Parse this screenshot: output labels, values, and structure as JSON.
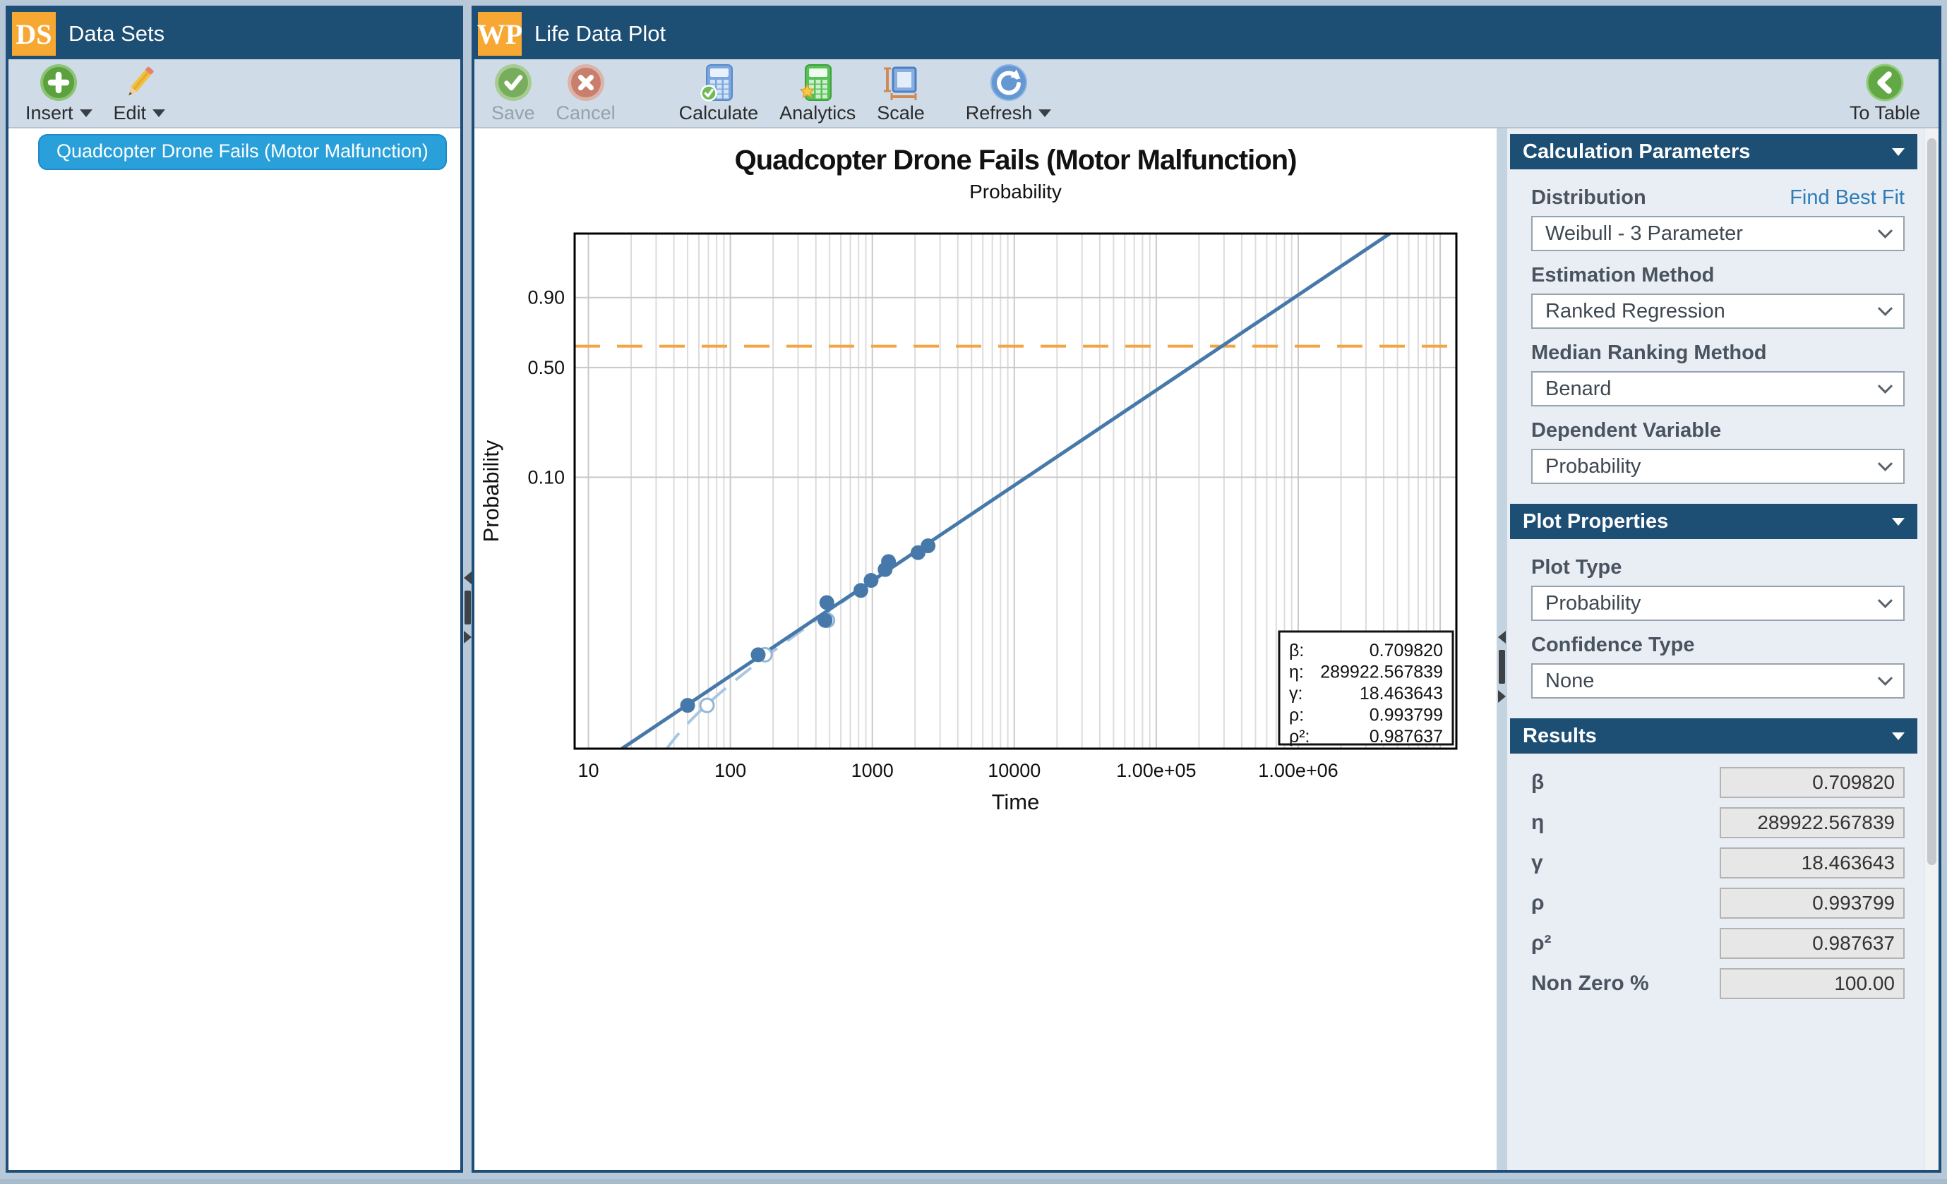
{
  "page": {
    "background": "#b7c8d9",
    "panel_border": "#1e4d78",
    "header_color": "#1d4e74",
    "badge_color": "#f7a833"
  },
  "datasets_panel": {
    "badge": "DS",
    "title": "Data Sets",
    "toolbar": {
      "insert_label": "Insert",
      "edit_label": "Edit"
    },
    "items": [
      {
        "label": "Quadcopter Drone Fails (Motor Malfunction)",
        "selected": true
      }
    ]
  },
  "plot_panel": {
    "badge": "WP",
    "title": "Life Data Plot",
    "toolbar": {
      "save": "Save",
      "cancel": "Cancel",
      "calculate": "Calculate",
      "analytics": "Analytics",
      "scale": "Scale",
      "refresh": "Refresh",
      "to_table": "To Table"
    },
    "icons": {
      "save": "check-circle",
      "cancel": "x-circle",
      "calculate": "calculator-with-check",
      "analytics": "calculator-with-star",
      "scale": "square-with-rulers",
      "refresh": "circular-arrow",
      "to_table": "arrow-left-circle",
      "insert": "plus-circle",
      "edit": "pencil"
    }
  },
  "chart_data": {
    "type": "scatter",
    "plot_kind": "weibull-probability-plot",
    "title": "Quadcopter Drone Fails (Motor Malfunction)",
    "subtitle": "Probability",
    "xlabel": "Time",
    "ylabel": "Probability",
    "x_scale": "log",
    "y_scale": "weibull",
    "grid": true,
    "x_range": [
      8,
      13000000
    ],
    "y_range": [
      0.001,
      0.999
    ],
    "x_ticks": [
      "10",
      "100",
      "1000",
      "10000",
      "1.00e+05",
      "1.00e+06"
    ],
    "x_tick_values": [
      10,
      100,
      1000,
      10000,
      100000,
      1000000
    ],
    "y_ticks": [
      "0.90",
      "0.50",
      "0.10"
    ],
    "y_tick_values": [
      0.9,
      0.5,
      0.1
    ],
    "eta_line_probability": 0.632,
    "fit": {
      "beta": 0.70982,
      "eta": 289922.567839,
      "gamma": 18.463643,
      "rho": 0.993799,
      "rho2": 0.987637
    },
    "adjusted_points": [
      [
        50,
        0.0021
      ],
      [
        157,
        0.005
      ],
      [
        465,
        0.009
      ],
      [
        478,
        0.0122
      ],
      [
        830,
        0.015
      ],
      [
        980,
        0.0178
      ],
      [
        1230,
        0.0214
      ],
      [
        1300,
        0.0245
      ],
      [
        2100,
        0.0285
      ],
      [
        2470,
        0.032
      ]
    ],
    "original_points": [
      [
        68.5,
        0.0021
      ],
      [
        175.5,
        0.005
      ],
      [
        483.5,
        0.009
      ]
    ],
    "legend_box": {
      "rows": [
        [
          "β:",
          "0.709820"
        ],
        [
          "η:",
          "289922.567839"
        ],
        [
          "γ:",
          "18.463643"
        ],
        [
          "ρ:",
          "0.993799"
        ],
        [
          "ρ²:",
          "0.987637"
        ]
      ]
    },
    "colors": {
      "fit_line": "#4679aa",
      "points": "#4679aa",
      "open_points": "#93b7d7",
      "dashed_model": "#a9c6e0",
      "eta_line": "#f2a542",
      "grid_major": "#c9c9c9",
      "grid_minor": "#dcdcdc",
      "plot_border": "#000000"
    }
  },
  "sidebar": {
    "calculation_parameters": {
      "title": "Calculation Parameters",
      "find_best_fit": "Find Best Fit",
      "fields": [
        {
          "label": "Distribution",
          "value": "Weibull - 3 Parameter"
        },
        {
          "label": "Estimation Method",
          "value": "Ranked Regression"
        },
        {
          "label": "Median Ranking Method",
          "value": "Benard"
        },
        {
          "label": "Dependent Variable",
          "value": "Probability"
        }
      ]
    },
    "plot_properties": {
      "title": "Plot Properties",
      "fields": [
        {
          "label": "Plot Type",
          "value": "Probability"
        },
        {
          "label": "Confidence Type",
          "value": "None"
        }
      ]
    },
    "results": {
      "title": "Results",
      "rows": [
        {
          "label": "β",
          "value": "0.709820"
        },
        {
          "label": "η",
          "value": "289922.567839"
        },
        {
          "label": "γ",
          "value": "18.463643"
        },
        {
          "label": "ρ",
          "value": "0.993799"
        },
        {
          "label": "ρ²",
          "value": "0.987637"
        },
        {
          "label": "Non Zero %",
          "value": "100.00"
        }
      ]
    }
  }
}
